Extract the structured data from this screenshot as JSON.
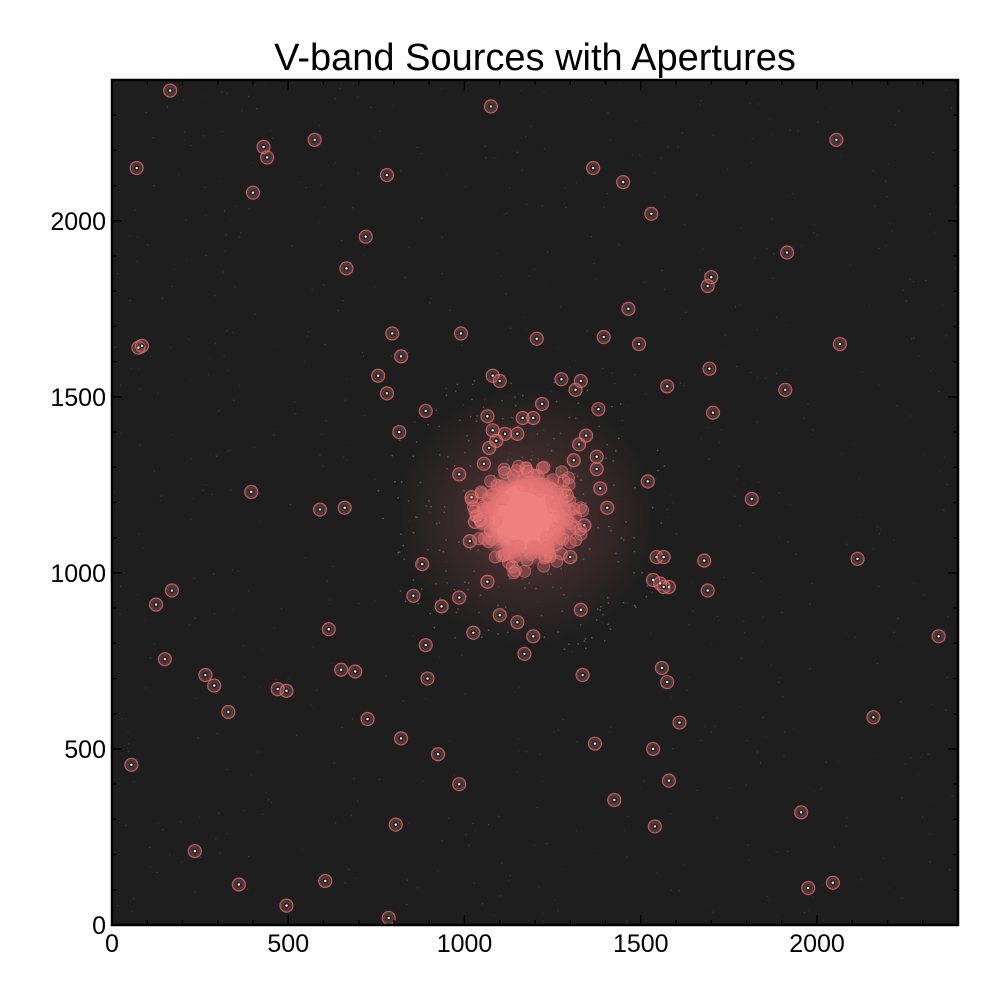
{
  "chart_data": {
    "type": "scatter",
    "title": "V-band Sources with Apertures",
    "xlabel": "",
    "ylabel": "",
    "xlim": [
      0,
      2400
    ],
    "ylim": [
      0,
      2400
    ],
    "x_ticks": [
      0,
      500,
      1000,
      1500,
      2000
    ],
    "y_ticks": [
      0,
      500,
      1000,
      1500,
      2000
    ],
    "grid": false,
    "colors": {
      "background": "#1e1e1e",
      "aperture": "#e57373",
      "cluster": "#f08080",
      "star": "#ffffff"
    },
    "series": [
      {
        "name": "",
        "marker": "aperture-circle",
        "x": [
          165,
          1075,
          70,
          430,
          440,
          575,
          780,
          400,
          1530,
          1365,
          1450,
          2055,
          720,
          665,
          1915,
          1700,
          1690,
          75,
          85,
          1465,
          1395,
          1495,
          2065,
          795,
          990,
          1205,
          820,
          1575,
          1695,
          755,
          780,
          1080,
          1275,
          1315,
          1330,
          1910,
          1220,
          1380,
          1705,
          890,
          815,
          1100,
          1165,
          1195,
          1150,
          1115,
          1065,
          1080,
          1090,
          1070,
          1345,
          1325,
          1375,
          1310,
          1375,
          985,
          1055,
          1520,
          1385,
          1405,
          1020,
          395,
          1815,
          590,
          660,
          1030,
          1015,
          1170,
          1190,
          1290,
          1260,
          1225,
          1545,
          1565,
          1580,
          1680,
          2115,
          880,
          1230,
          1300,
          1340,
          1535,
          1555,
          1565,
          1690,
          1065,
          855,
          935,
          985,
          1025,
          1100,
          1150,
          1330,
          170,
          125,
          1195,
          1170,
          1045,
          890,
          615,
          150,
          2345,
          895,
          265,
          290,
          650,
          690,
          1560,
          1575,
          1335,
          470,
          495,
          330,
          1610,
          2160,
          725,
          1370,
          1535,
          55,
          820,
          925,
          1580,
          985,
          1425,
          1955,
          805,
          1540,
          235,
          605,
          2045,
          1975,
          360,
          495,
          785
        ],
        "y": [
          2370,
          2325,
          2150,
          2210,
          2180,
          2230,
          2130,
          2080,
          2020,
          2150,
          2110,
          2230,
          1955,
          1865,
          1910,
          1840,
          1815,
          1640,
          1645,
          1750,
          1670,
          1650,
          1650,
          1680,
          1680,
          1665,
          1615,
          1530,
          1580,
          1560,
          1510,
          1560,
          1550,
          1520,
          1545,
          1520,
          1480,
          1465,
          1455,
          1460,
          1400,
          1545,
          1440,
          1440,
          1395,
          1395,
          1445,
          1405,
          1375,
          1355,
          1390,
          1365,
          1330,
          1320,
          1295,
          1280,
          1310,
          1260,
          1240,
          1185,
          1215,
          1230,
          1210,
          1180,
          1185,
          1145,
          1090,
          1195,
          1210,
          1220,
          1230,
          1175,
          1045,
          1045,
          960,
          1035,
          1040,
          1025,
          1050,
          1045,
          1135,
          980,
          970,
          960,
          950,
          975,
          935,
          905,
          930,
          830,
          880,
          860,
          895,
          950,
          910,
          820,
          770,
          1150,
          795,
          840,
          755,
          820,
          700,
          710,
          680,
          725,
          720,
          730,
          690,
          710,
          670,
          665,
          605,
          575,
          590,
          585,
          515,
          500,
          455,
          530,
          485,
          410,
          400,
          355,
          320,
          285,
          280,
          210,
          125,
          120,
          105,
          115,
          55,
          20
        ]
      },
      {
        "name": "",
        "marker": "dense-cluster",
        "x": [
          1175
        ],
        "y": [
          1160
        ]
      }
    ]
  }
}
